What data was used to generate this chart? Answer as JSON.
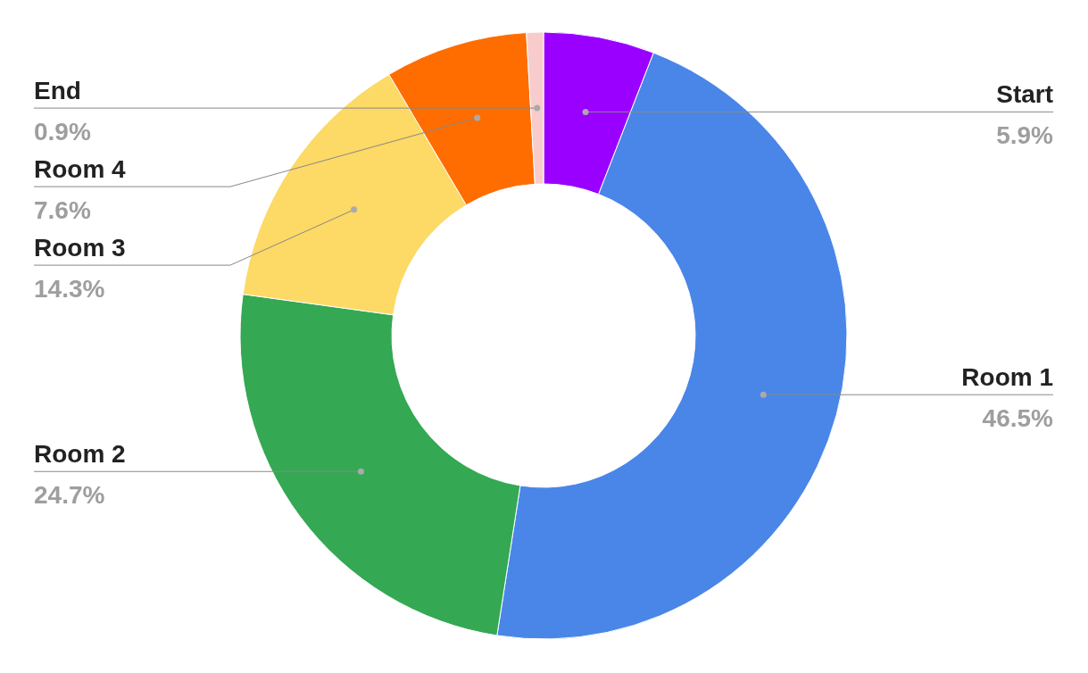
{
  "chart_data": {
    "type": "donut",
    "categories": [
      "Start",
      "Room 1",
      "Room 2",
      "Room 3",
      "Room 4",
      "End"
    ],
    "values": [
      5.9,
      46.5,
      24.7,
      14.3,
      7.6,
      0.9
    ],
    "value_labels": [
      "5.9%",
      "46.5%",
      "24.7%",
      "14.3%",
      "7.6%",
      "0.9%"
    ],
    "colors": [
      "#9900ff",
      "#4a86e8",
      "#34a853",
      "#fdd966",
      "#ff6d00",
      "#f8cccc"
    ]
  }
}
